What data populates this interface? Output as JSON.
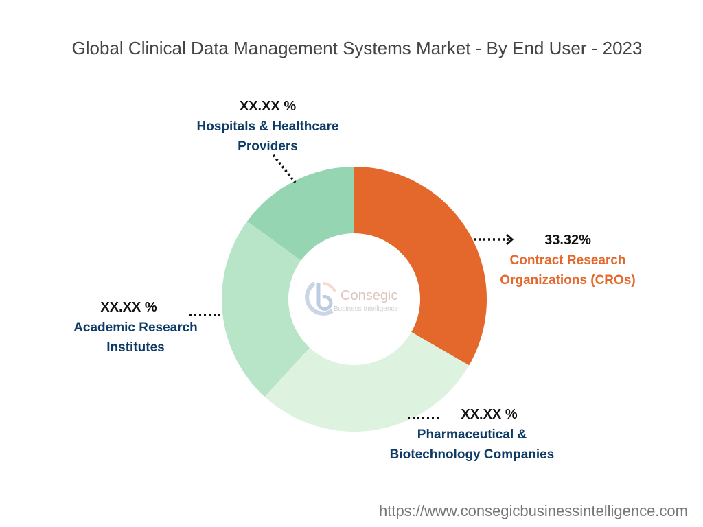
{
  "chart_data": {
    "type": "pie",
    "variant": "donut",
    "title": "Global Clinical Data Management Systems Market - By End User - 2023",
    "slices": [
      {
        "label": "Contract Research Organizations (CROs)",
        "value": 33.32,
        "display": "33.32%",
        "color": "#E4682B",
        "label_color": "#E4682B"
      },
      {
        "label": "Pharmaceutical & Biotechnology Companies",
        "value": 28.5,
        "display": "XX.XX %",
        "color": "#DDF3E0",
        "label_color": "#0d3b66"
      },
      {
        "label": "Academic Research Institutes",
        "value": 23.2,
        "display": "XX.XX %",
        "color": "#B8E5C8",
        "label_color": "#0d3b66"
      },
      {
        "label": "Hospitals & Healthcare Providers",
        "value": 14.98,
        "display": "XX.XX %",
        "color": "#95D5B2",
        "label_color": "#0d3b66"
      }
    ]
  },
  "labels": {
    "cro": [
      "Contract Research",
      "Organizations (CROs)"
    ],
    "pharma": [
      "Pharmaceutical &",
      "Biotechnology Companies"
    ],
    "academic": [
      "Academic Research",
      "Institutes"
    ],
    "hospital": [
      "Hospitals & Healthcare",
      "Providers"
    ]
  },
  "logo": {
    "name": "Consegic",
    "tagline": "Business Intelligence"
  },
  "footer": {
    "url": "https://www.consegicbusinessintelligence.com"
  }
}
